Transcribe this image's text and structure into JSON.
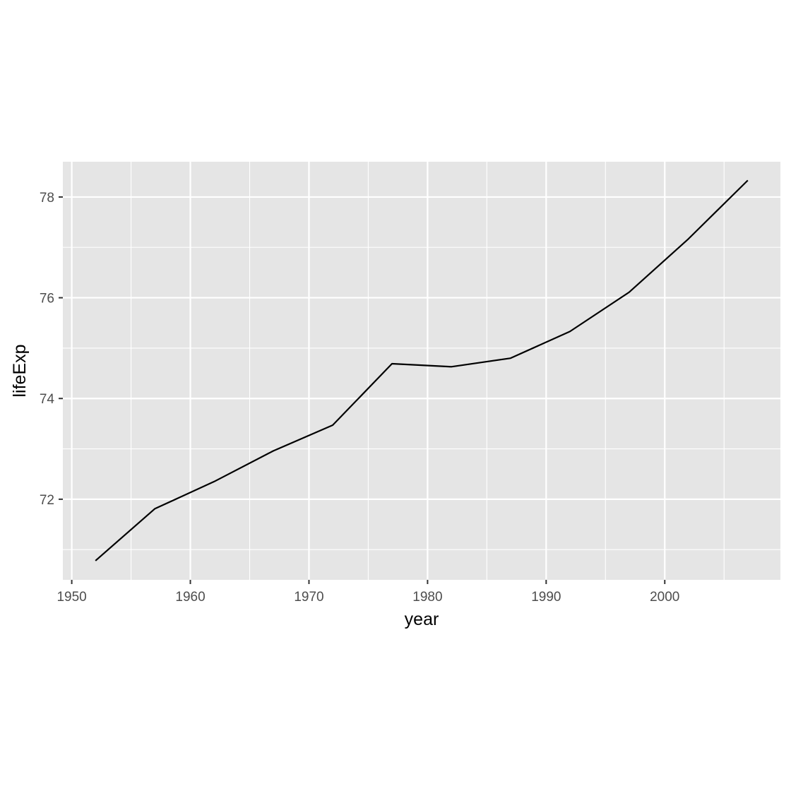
{
  "chart_data": {
    "type": "line",
    "title": "",
    "xlabel": "year",
    "ylabel": "lifeExp",
    "xlim": [
      1949.25,
      2009.75
    ],
    "ylim": [
      70.4,
      78.7
    ],
    "x_ticks": [
      1950,
      1960,
      1970,
      1980,
      1990,
      2000
    ],
    "x_tick_labels": [
      "1950",
      "1960",
      "1970",
      "1980",
      "1990",
      "2000"
    ],
    "x_minor_ticks": [
      1955,
      1965,
      1975,
      1985,
      1995,
      2005
    ],
    "y_ticks": [
      72,
      74,
      76,
      78
    ],
    "y_tick_labels": [
      "72",
      "74",
      "76",
      "78"
    ],
    "y_minor_ticks": [
      71,
      73,
      75,
      77
    ],
    "grid": true,
    "legend": "none",
    "colors": {
      "panel": "#e5e5e5",
      "grid": "#ffffff",
      "line": "#000000",
      "tick_text": "#4d4d4d",
      "axis_title": "#000000"
    },
    "series": [
      {
        "x": [
          1952,
          1957,
          1962,
          1967,
          1972,
          1977,
          1982,
          1987,
          1992,
          1997,
          2002,
          2007
        ],
        "values": [
          70.78,
          71.81,
          72.35,
          72.96,
          73.47,
          74.69,
          74.63,
          74.8,
          75.33,
          76.11,
          77.17,
          78.33
        ]
      }
    ]
  }
}
